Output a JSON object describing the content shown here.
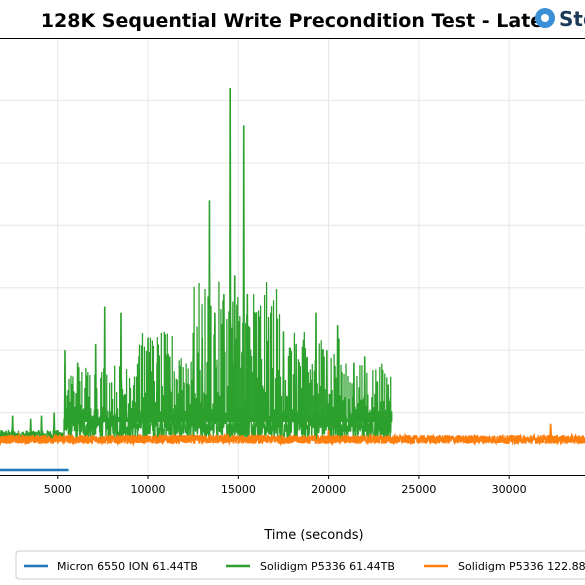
{
  "chart_data": {
    "type": "line",
    "title": "128K Sequential Write Precondition Test - Late",
    "xlabel": "Time (seconds)",
    "ylabel": "",
    "xlim": [
      1800,
      34200
    ],
    "ylim": [
      0,
      7.0
    ],
    "grid": true,
    "x_ticks": [
      5000,
      10000,
      15000,
      20000,
      25000,
      30000
    ],
    "x_tick_labels": [
      "5000",
      "10000",
      "15000",
      "20000",
      "25000",
      "30000"
    ],
    "legend_position": "bottom",
    "series": [
      {
        "name": "Micron 6550 ION 61.44TB",
        "color": "#1f77b4",
        "x": [
          1800,
          5600
        ],
        "values": [
          0.08,
          0.08
        ]
      },
      {
        "name": "Solidigm P5336 61.44TB",
        "color": "#2ca02c",
        "baseline_segments": [
          {
            "x_start": 1800,
            "x_end": 5350,
            "low": 0.55,
            "high": 0.72
          },
          {
            "x_start": 5350,
            "x_end": 23500,
            "low": 0.55,
            "high": 1.05
          }
        ],
        "spikes": [
          {
            "x": 2500,
            "value": 0.95
          },
          {
            "x": 3500,
            "value": 0.9
          },
          {
            "x": 4100,
            "value": 0.95
          },
          {
            "x": 4800,
            "value": 1.0
          },
          {
            "x": 5400,
            "value": 2.0
          },
          {
            "x": 6100,
            "value": 1.8
          },
          {
            "x": 7100,
            "value": 2.1
          },
          {
            "x": 7600,
            "value": 2.7
          },
          {
            "x": 8500,
            "value": 2.6
          },
          {
            "x": 9500,
            "value": 1.9
          },
          {
            "x": 10000,
            "value": 2.2
          },
          {
            "x": 10500,
            "value": 1.8
          },
          {
            "x": 11200,
            "value": 1.9
          },
          {
            "x": 11800,
            "value": 1.75
          },
          {
            "x": 12500,
            "value": 1.9
          },
          {
            "x": 13000,
            "value": 2.2
          },
          {
            "x": 13400,
            "value": 4.4
          },
          {
            "x": 13700,
            "value": 2.6
          },
          {
            "x": 14200,
            "value": 2.9
          },
          {
            "x": 14550,
            "value": 6.2
          },
          {
            "x": 14800,
            "value": 3.2
          },
          {
            "x": 15300,
            "value": 5.6
          },
          {
            "x": 15500,
            "value": 2.9
          },
          {
            "x": 16000,
            "value": 2.2
          },
          {
            "x": 16800,
            "value": 2.6
          },
          {
            "x": 17500,
            "value": 2.3
          },
          {
            "x": 18200,
            "value": 2.1
          },
          {
            "x": 19300,
            "value": 2.6
          },
          {
            "x": 19900,
            "value": 2.0
          },
          {
            "x": 20500,
            "value": 2.4
          },
          {
            "x": 21400,
            "value": 1.8
          },
          {
            "x": 22000,
            "value": 1.9
          },
          {
            "x": 22700,
            "value": 1.5
          },
          {
            "x": 23300,
            "value": 1.45
          }
        ]
      },
      {
        "name": "Solidigm P5336 122.88",
        "color": "#ff7f0e",
        "band": {
          "x_start": 1800,
          "x_end": 34200,
          "low": 0.5,
          "high": 0.64
        },
        "spikes": [
          {
            "x": 20000,
            "value": 0.72
          },
          {
            "x": 32300,
            "value": 0.82
          }
        ]
      }
    ]
  },
  "logo": {
    "text": "Sto"
  }
}
